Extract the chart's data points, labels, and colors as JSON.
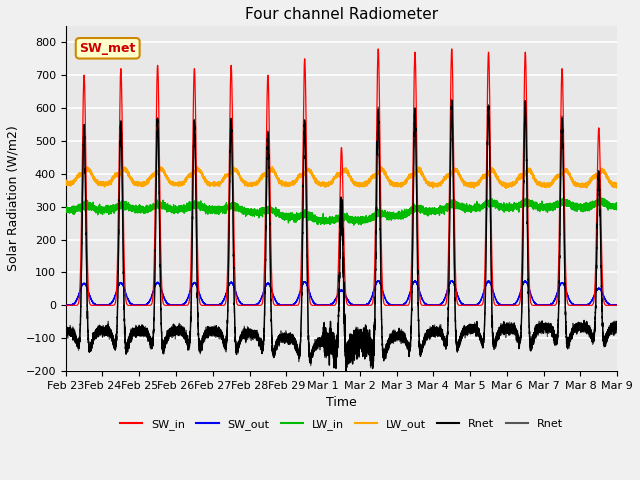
{
  "title": "Four channel Radiometer",
  "xlabel": "Time",
  "ylabel": "Solar Radiation (W/m2)",
  "ylim": [
    -200,
    850
  ],
  "yticks": [
    -200,
    -100,
    0,
    100,
    200,
    300,
    400,
    500,
    600,
    700,
    800
  ],
  "total_days": 15,
  "sw_in_peaks": [
    700,
    720,
    730,
    720,
    730,
    700,
    750,
    480,
    780,
    770,
    780,
    770,
    770,
    720,
    540
  ],
  "colors": {
    "SW_in": "#ff0000",
    "SW_out": "#0000ff",
    "LW_in": "#00bb00",
    "LW_out": "#ffa500",
    "Rnet1": "#000000",
    "Rnet2": "#555555"
  },
  "annotation_text": "SW_met",
  "annotation_color": "#cc0000",
  "annotation_bg": "#ffffcc",
  "annotation_edge": "#cc8800",
  "plot_bg": "#e8e8e8",
  "grid_color": "#ffffff",
  "x_tick_labels": [
    "Feb 23",
    "Feb 24",
    "Feb 25",
    "Feb 26",
    "Feb 27",
    "Feb 28",
    "Feb 29",
    "Mar 1",
    "Mar 2",
    "Mar 3",
    "Mar 4",
    "Mar 5",
    "Mar 6",
    "Mar 7",
    "Mar 8",
    "Mar 9"
  ],
  "legend_labels": [
    "SW_in",
    "SW_out",
    "LW_in",
    "LW_out",
    "Rnet",
    "Rnet"
  ],
  "legend_colors": [
    "#ff0000",
    "#0000ff",
    "#00bb00",
    "#ffa500",
    "#000000",
    "#555555"
  ]
}
